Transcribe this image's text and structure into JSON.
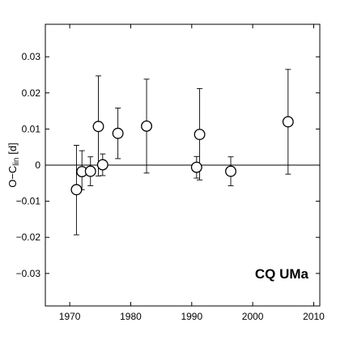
{
  "chart_data": {
    "type": "scatter",
    "title": "",
    "xlabel": "",
    "ylabel": "O−C",
    "ylabel_subscript": "lin",
    "ylabel_unit": "[d]",
    "annotation": "CQ UMa",
    "xlim": [
      1966,
      2011
    ],
    "ylim": [
      -0.039,
      0.039
    ],
    "x_ticks": [
      1970,
      1980,
      1990,
      2000,
      2010
    ],
    "x_tick_labels": [
      "1970",
      "1980",
      "1990",
      "2000",
      "2010"
    ],
    "y_ticks": [
      -0.03,
      -0.02,
      -0.01,
      0,
      0.01,
      0.02,
      0.03
    ],
    "y_tick_labels": [
      "−0.03",
      "−0.02",
      "−0.01",
      "0",
      "0.01",
      "0.02",
      "0.03"
    ],
    "zero_line": true,
    "grid": false,
    "legend": false,
    "series": [
      {
        "points": [
          {
            "x": 1971.1,
            "y": -0.0068,
            "err_low": 0.0125,
            "err_high": 0.0123
          },
          {
            "x": 1972.0,
            "y": -0.0018,
            "err_low": 0.005,
            "err_high": 0.0058
          },
          {
            "x": 1973.4,
            "y": -0.0017,
            "err_low": 0.004,
            "err_high": 0.004
          },
          {
            "x": 1974.7,
            "y": 0.0107,
            "err_low": 0.0137,
            "err_high": 0.014
          },
          {
            "x": 1975.4,
            "y": 0.0001,
            "err_low": 0.003,
            "err_high": 0.003
          },
          {
            "x": 1977.9,
            "y": 0.0088,
            "err_low": 0.007,
            "err_high": 0.007
          },
          {
            "x": 1982.6,
            "y": 0.0108,
            "err_low": 0.013,
            "err_high": 0.013
          },
          {
            "x": 1990.8,
            "y": -0.0006,
            "err_low": 0.003,
            "err_high": 0.003
          },
          {
            "x": 1991.3,
            "y": 0.0085,
            "err_low": 0.0126,
            "err_high": 0.0127
          },
          {
            "x": 1996.4,
            "y": -0.0017,
            "err_low": 0.004,
            "err_high": 0.004
          },
          {
            "x": 2005.8,
            "y": 0.012,
            "err_low": 0.0145,
            "err_high": 0.0145
          }
        ]
      }
    ]
  }
}
